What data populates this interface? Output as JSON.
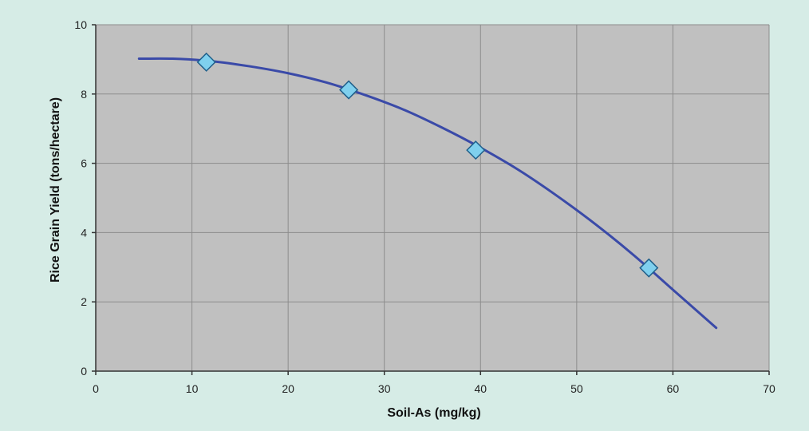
{
  "chart_data": {
    "type": "scatter",
    "title": "",
    "xlabel": "Soil-As (mg/kg)",
    "ylabel": "Rice Grain Yield (tons/hectare)",
    "xlim": [
      0,
      70
    ],
    "ylim": [
      0,
      10
    ],
    "x_ticks": [
      0,
      10,
      20,
      30,
      40,
      50,
      60,
      70
    ],
    "y_ticks": [
      0,
      2,
      4,
      6,
      8,
      10
    ],
    "x_tick_labels": [
      "0",
      "10",
      "20",
      "30",
      "40",
      "50",
      "60",
      "70"
    ],
    "y_tick_labels": [
      "0",
      "2",
      "4",
      "6",
      "8",
      "10"
    ],
    "grid": true,
    "legend": "none",
    "series": [
      {
        "type": "scatter",
        "marker": "diamond",
        "points": [
          {
            "x": 11.5,
            "y": 8.92
          },
          {
            "x": 26.3,
            "y": 8.12
          },
          {
            "x": 39.5,
            "y": 6.38
          },
          {
            "x": 57.5,
            "y": 2.98
          }
        ]
      },
      {
        "type": "line",
        "points": [
          {
            "x": 4.5,
            "y": 9.02
          },
          {
            "x": 8.0,
            "y": 9.02
          },
          {
            "x": 12.0,
            "y": 8.95
          },
          {
            "x": 16.0,
            "y": 8.8
          },
          {
            "x": 20.0,
            "y": 8.6
          },
          {
            "x": 24.0,
            "y": 8.33
          },
          {
            "x": 28.0,
            "y": 7.97
          },
          {
            "x": 32.0,
            "y": 7.55
          },
          {
            "x": 36.0,
            "y": 7.03
          },
          {
            "x": 40.0,
            "y": 6.45
          },
          {
            "x": 44.0,
            "y": 5.8
          },
          {
            "x": 48.0,
            "y": 5.05
          },
          {
            "x": 52.0,
            "y": 4.23
          },
          {
            "x": 56.0,
            "y": 3.33
          },
          {
            "x": 60.0,
            "y": 2.35
          },
          {
            "x": 64.5,
            "y": 1.25
          }
        ]
      }
    ],
    "colors": {
      "background": "#d6ece6",
      "plot_area": "#c0c0c0",
      "grid": "#8c8c8c",
      "axis": "#333333",
      "curve": "#3a4aa8",
      "marker_fill": "#7fd0ee",
      "marker_stroke": "#1f5f8a"
    }
  }
}
